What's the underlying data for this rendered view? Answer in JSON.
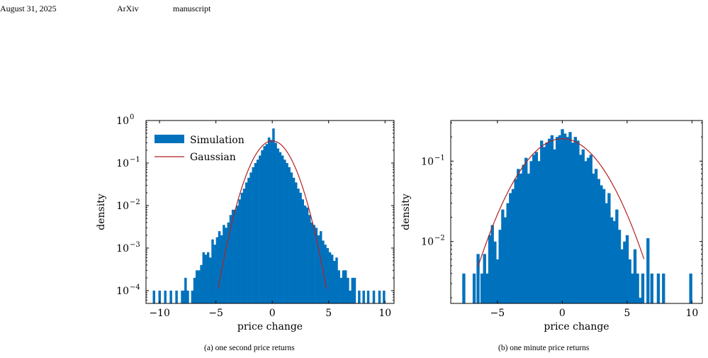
{
  "header": {
    "date": "August 31, 2025",
    "venue": "ArXiv",
    "doc_type": "manuscript"
  },
  "figures": [
    {
      "caption": "(a) one second price returns"
    },
    {
      "caption": "(b) one minute price returns"
    }
  ],
  "colors": {
    "bars": "#0072bd",
    "gaussian": "#b22222"
  },
  "chart_data": [
    {
      "type": "bar",
      "xlabel": "price change",
      "ylabel": "density",
      "yscale": "log",
      "xlim": [
        -11.2,
        10.8
      ],
      "ylim": [
        5e-05,
        1.0
      ],
      "xticks": [
        -10,
        -5,
        0,
        5,
        10
      ],
      "xtick_labels": [
        "−10",
        "−5",
        "0",
        "5",
        "10"
      ],
      "yticks": [
        0.0001,
        0.001,
        0.01,
        0.1,
        1
      ],
      "ytick_exponents": [
        "−4",
        "−3",
        "−2",
        "−1",
        "0"
      ],
      "legend": {
        "position": "top-left",
        "entries": [
          "Simulation",
          "Gaussian"
        ]
      },
      "bin_width": 0.2,
      "bars_x": [
        -10.5,
        -10.0,
        -9.5,
        -9.0,
        -8.5,
        -8.0,
        -7.9,
        -7.7,
        -7.5,
        -7.1,
        -6.9,
        -6.7,
        -6.5,
        -6.3,
        -6.1,
        -5.9,
        -5.7,
        -5.5,
        -5.3,
        -5.1,
        -4.9,
        -4.7,
        -4.5,
        -4.3,
        -4.1,
        -3.9,
        -3.7,
        -3.5,
        -3.3,
        -3.1,
        -2.9,
        -2.7,
        -2.5,
        -2.3,
        -2.1,
        -1.9,
        -1.7,
        -1.5,
        -1.3,
        -1.1,
        -0.9,
        -0.7,
        -0.5,
        -0.3,
        -0.1,
        0.1,
        0.3,
        0.5,
        0.7,
        0.9,
        1.1,
        1.3,
        1.5,
        1.7,
        1.9,
        2.1,
        2.3,
        2.5,
        2.7,
        2.9,
        3.1,
        3.3,
        3.5,
        3.7,
        3.9,
        4.1,
        4.3,
        4.5,
        4.7,
        4.9,
        5.1,
        5.3,
        5.5,
        5.7,
        5.9,
        6.1,
        6.3,
        6.5,
        6.7,
        6.9,
        7.1,
        7.3,
        7.7,
        8.1,
        8.5,
        9.0,
        9.5,
        9.9
      ],
      "bars_y": [
        0.0001,
        0.0001,
        0.0001,
        0.0001,
        0.0001,
        0.0001,
        0.0001,
        0.0002,
        0.0001,
        0.0001,
        0.0002,
        0.0003,
        0.0003,
        0.0004,
        0.0008,
        0.0007,
        0.0008,
        0.0006,
        0.0016,
        0.0012,
        0.0018,
        0.0025,
        0.002,
        0.0035,
        0.003,
        0.004,
        0.006,
        0.008,
        0.008,
        0.01,
        0.014,
        0.02,
        0.025,
        0.035,
        0.045,
        0.06,
        0.08,
        0.1,
        0.12,
        0.15,
        0.2,
        0.25,
        0.28,
        0.4,
        0.35,
        0.65,
        0.3,
        0.22,
        0.18,
        0.15,
        0.12,
        0.1,
        0.08,
        0.06,
        0.045,
        0.035,
        0.025,
        0.02,
        0.014,
        0.01,
        0.009,
        0.006,
        0.004,
        0.0035,
        0.003,
        0.002,
        0.0025,
        0.0015,
        0.0012,
        0.001,
        0.0008,
        0.0007,
        0.0005,
        0.0006,
        0.0003,
        0.0002,
        0.0003,
        0.0003,
        0.0002,
        0.0001,
        0.0002,
        0.0002,
        0.0001,
        0.0001,
        0.0001,
        0.0001,
        0.0001,
        0.0001
      ],
      "gaussian": {
        "mu": 0.0,
        "sigma": 1.2,
        "xrange": [
          -4.8,
          4.8
        ]
      }
    },
    {
      "type": "bar",
      "xlabel": "price change",
      "ylabel": "density",
      "yscale": "log",
      "xlim": [
        -8.6,
        10.8
      ],
      "ylim": [
        0.0017,
        0.32
      ],
      "xticks": [
        -5,
        0,
        5,
        10
      ],
      "xtick_labels": [
        "−5",
        "0",
        "5",
        "10"
      ],
      "yticks": [
        0.01,
        0.1
      ],
      "ytick_exponents": [
        "−2",
        "−1"
      ],
      "bin_width": 0.22,
      "bars_x": [
        -7.6,
        -6.8,
        -6.5,
        -6.2,
        -6.0,
        -5.8,
        -5.6,
        -5.4,
        -5.2,
        -5.0,
        -4.8,
        -4.6,
        -4.4,
        -4.2,
        -4.0,
        -3.8,
        -3.6,
        -3.4,
        -3.2,
        -3.0,
        -2.8,
        -2.6,
        -2.4,
        -2.2,
        -2.0,
        -1.8,
        -1.6,
        -1.4,
        -1.2,
        -1.0,
        -0.8,
        -0.6,
        -0.4,
        -0.2,
        0.0,
        0.2,
        0.4,
        0.6,
        0.8,
        1.0,
        1.2,
        1.4,
        1.6,
        1.8,
        2.0,
        2.2,
        2.4,
        2.6,
        2.8,
        3.0,
        3.2,
        3.4,
        3.6,
        3.8,
        4.0,
        4.2,
        4.4,
        4.6,
        4.8,
        5.0,
        5.2,
        5.4,
        5.6,
        5.8,
        6.0,
        6.2,
        6.6,
        6.9,
        7.4,
        7.8,
        9.9
      ],
      "bars_y": [
        0.004,
        0.004,
        0.007,
        0.004,
        0.007,
        0.004,
        0.012,
        0.016,
        0.01,
        0.006,
        0.014,
        0.025,
        0.02,
        0.03,
        0.04,
        0.045,
        0.06,
        0.08,
        0.07,
        0.09,
        0.11,
        0.07,
        0.1,
        0.12,
        0.13,
        0.1,
        0.18,
        0.15,
        0.17,
        0.19,
        0.21,
        0.14,
        0.2,
        0.21,
        0.25,
        0.22,
        0.2,
        0.23,
        0.17,
        0.2,
        0.18,
        0.12,
        0.14,
        0.1,
        0.11,
        0.12,
        0.07,
        0.08,
        0.06,
        0.05,
        0.045,
        0.03,
        0.04,
        0.02,
        0.018,
        0.025,
        0.014,
        0.008,
        0.01,
        0.012,
        0.006,
        0.004,
        0.008,
        0.004,
        0.002,
        0.004,
        0.011,
        0.004,
        0.004,
        0.004,
        0.004
      ],
      "gaussian": {
        "mu": 0.0,
        "sigma": 2.4,
        "peak": 0.19,
        "xrange": [
          -6.5,
          6.3
        ]
      }
    }
  ]
}
